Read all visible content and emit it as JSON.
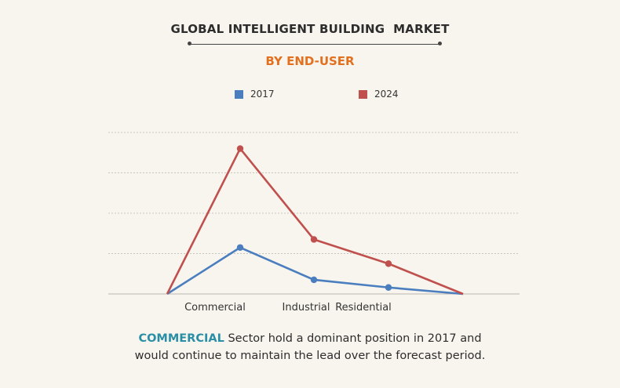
{
  "header": {
    "title": "GLOBAL INTELLIGENT BUILDING  MARKET",
    "subtitle": "BY END-USER"
  },
  "legend": [
    {
      "label": "2017",
      "color": "#4a7ebf"
    },
    {
      "label": "2024",
      "color": "#c0504d"
    }
  ],
  "chart_data": {
    "type": "line",
    "title": "GLOBAL INTELLIGENT BUILDING  MARKET",
    "subtitle": "BY END-USER",
    "categories": [
      "",
      "Commercial",
      "Industrial",
      "Residential",
      ""
    ],
    "series": [
      {
        "name": "2017",
        "color": "#4a7ebf",
        "values": [
          0,
          23,
          7,
          3.2,
          0
        ]
      },
      {
        "name": "2024",
        "color": "#c0504d",
        "values": [
          0,
          72,
          27,
          15,
          0
        ]
      }
    ],
    "ylim": [
      0,
      80
    ],
    "gridlines": [
      20,
      40,
      60,
      80
    ],
    "grid": true,
    "legend_position": "top",
    "xlabel": "",
    "ylabel": ""
  },
  "caption": {
    "highlight": "COMMERCIAL",
    "text_line1": " Sector hold a dominant position in 2017 and",
    "text_line2": "would continue to maintain the lead over the forecast period."
  }
}
